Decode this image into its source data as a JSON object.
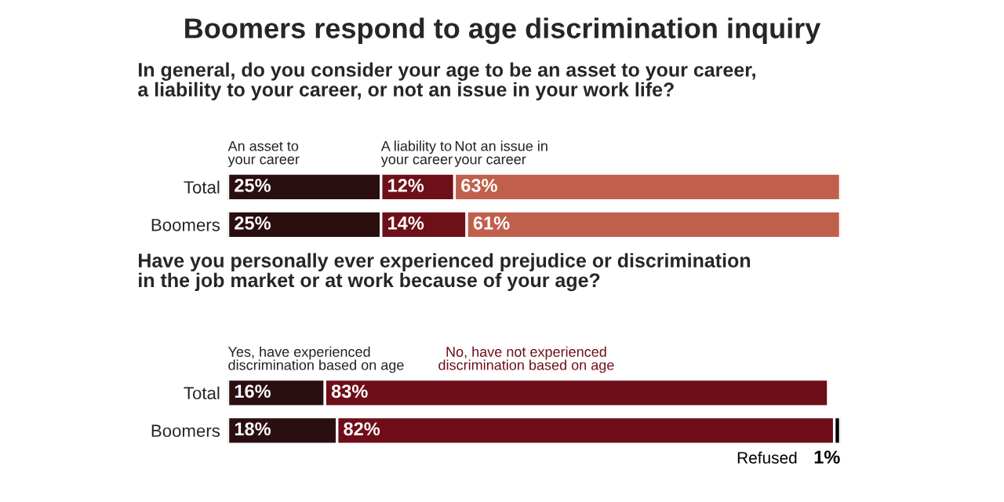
{
  "chart_data": [
    {
      "type": "bar",
      "title": "Boomers respond to age discrimination inquiry",
      "subtitle": "In general, do you consider your age to be an asset to your career,\na liability to your career, or not an issue in your work life?",
      "orientation": "horizontal",
      "stacked": true,
      "legend": false,
      "grid": false,
      "tick_labels": "y",
      "categories": [
        "Total",
        "Boomers"
      ],
      "series": [
        {
          "name": "An asset to\nyour career",
          "color": "#2a0e10",
          "values": [
            25,
            25
          ],
          "value_labels": [
            "25%",
            "25%"
          ]
        },
        {
          "name": "A liability to\nyour career",
          "color": "#6e1018",
          "values": [
            12,
            14
          ],
          "value_labels": [
            "12%",
            "14%"
          ]
        },
        {
          "name": "Not an issue in\nyour career",
          "color": "#c0604c",
          "values": [
            63,
            61
          ],
          "value_labels": [
            "63%",
            "61%"
          ]
        }
      ]
    },
    {
      "type": "bar",
      "subtitle": "Have you personally ever experienced prejudice or discrimination\nin the job market or at work because of your age?",
      "orientation": "horizontal",
      "stacked": true,
      "legend": false,
      "grid": false,
      "tick_labels": "y",
      "categories": [
        "Total",
        "Boomers"
      ],
      "series": [
        {
          "name": "Yes, have experienced\ndiscrimination based on age",
          "color": "#2a0e10",
          "values": [
            16,
            18
          ],
          "value_labels": [
            "16%",
            "18%"
          ]
        },
        {
          "name": "No, have not experienced\ndiscrimination based on age",
          "color": "#6e0e18",
          "values": [
            83,
            82
          ],
          "value_labels": [
            "83%",
            "82%"
          ]
        },
        {
          "name": "Refused",
          "color": "#000000",
          "values": [
            null,
            1
          ],
          "value_labels": [
            null,
            "1%"
          ]
        }
      ]
    }
  ]
}
